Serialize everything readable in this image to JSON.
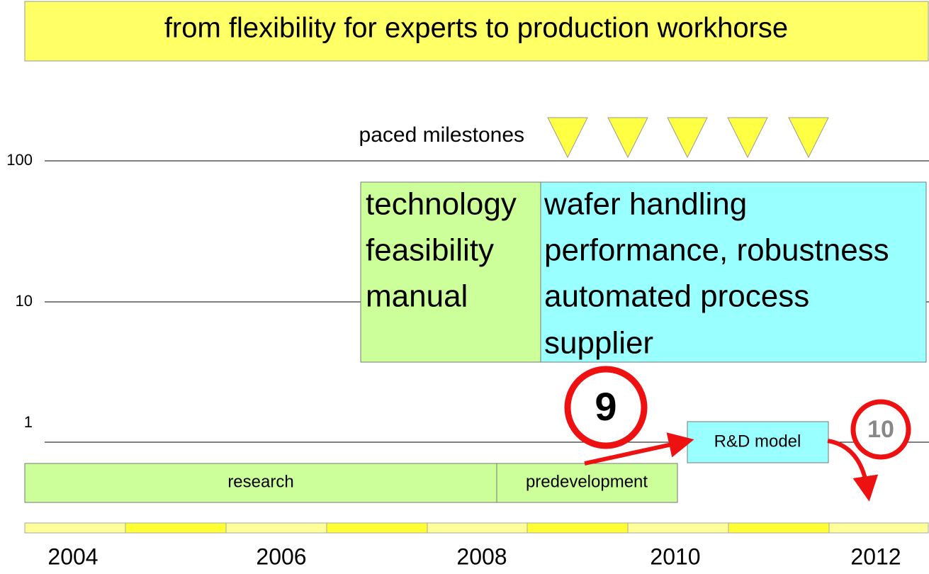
{
  "header": {
    "title": "from flexibility for experts to production workhorse"
  },
  "scale_labels": [
    "100",
    "10",
    "1"
  ],
  "milestones": {
    "label": "paced milestones"
  },
  "boxes": {
    "technology": [
      "technology",
      "feasibility",
      "manual"
    ],
    "product": [
      "wafer handling",
      "performance, robustness",
      "automated process",
      "supplier"
    ],
    "rd_model": "R&D model",
    "research": "research",
    "predevelopment": "predevelopment"
  },
  "markers": [
    "9",
    "10"
  ],
  "years": [
    "2004",
    "2006",
    "2008",
    "2010",
    "2012"
  ]
}
